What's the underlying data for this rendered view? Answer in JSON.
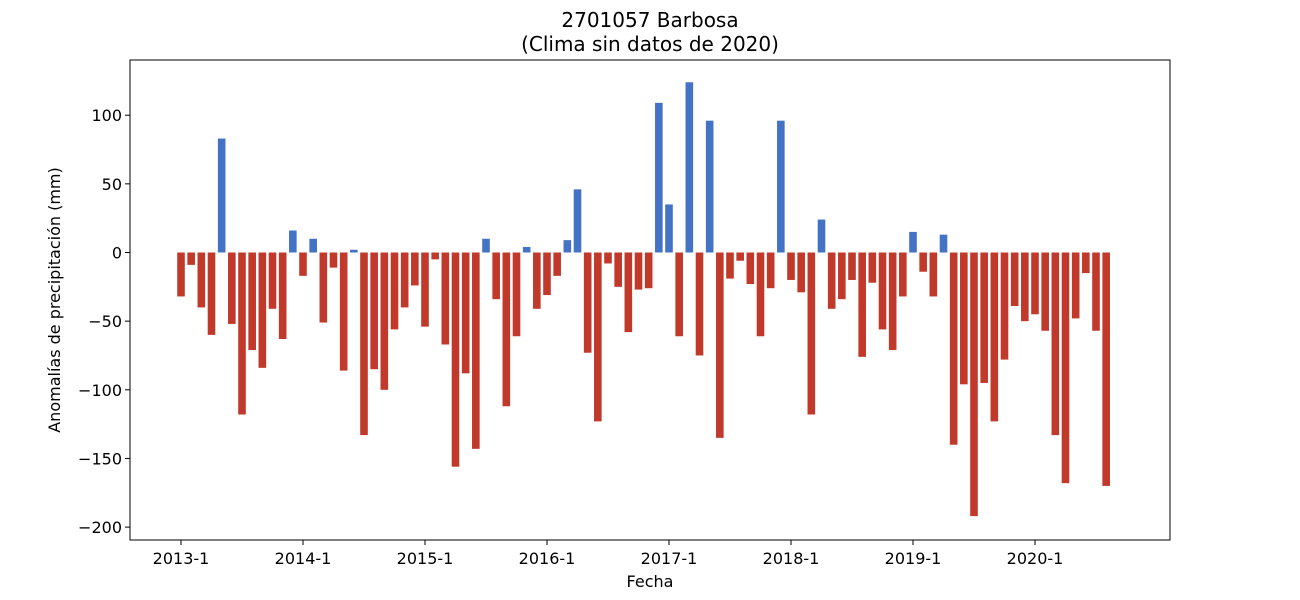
{
  "chart_data": {
    "type": "bar",
    "title_line1": "2701057 Barbosa",
    "title_line2": "(Clima sin datos de 2020)",
    "xlabel": "Fecha",
    "ylabel": "Anomalías de precipitación (mm)",
    "x_tick_labels": [
      "2013-1",
      "2014-1",
      "2015-1",
      "2016-1",
      "2017-1",
      "2018-1",
      "2019-1",
      "2020-1"
    ],
    "y_ticks": [
      100,
      50,
      0,
      -50,
      -100,
      -150,
      -200
    ],
    "y_tick_labels": [
      "100",
      "50",
      "0",
      "−50",
      "−100",
      "−150",
      "−200"
    ],
    "ylim": [
      -210,
      140
    ],
    "start_month": "2013-1",
    "positive_color": "#4472c4",
    "negative_color": "#c0392b",
    "values": [
      -32,
      -9,
      -40,
      -60,
      83,
      -52,
      -118,
      -71,
      -84,
      -41,
      -63,
      16,
      -17,
      10,
      -51,
      -11,
      -86,
      2,
      -133,
      -85,
      -100,
      -56,
      -40,
      -24,
      -54,
      -5,
      -67,
      -156,
      -88,
      -143,
      10,
      -34,
      -112,
      -61,
      4,
      -41,
      -31,
      -17,
      9,
      46,
      -73,
      -123,
      -8,
      -25,
      -58,
      -27,
      -26,
      109,
      35,
      -61,
      124,
      -75,
      96,
      -135,
      -19,
      -6,
      -23,
      -61,
      -26,
      96,
      -20,
      -29,
      -118,
      24,
      -41,
      -34,
      -20,
      -76,
      -22,
      -56,
      -71,
      -32,
      15,
      -14,
      -32,
      13,
      -140,
      -96,
      -192,
      -95,
      -123,
      -78,
      -39,
      -50,
      -45,
      -57,
      -133,
      -168,
      -48,
      -15,
      -57,
      -170
    ]
  }
}
